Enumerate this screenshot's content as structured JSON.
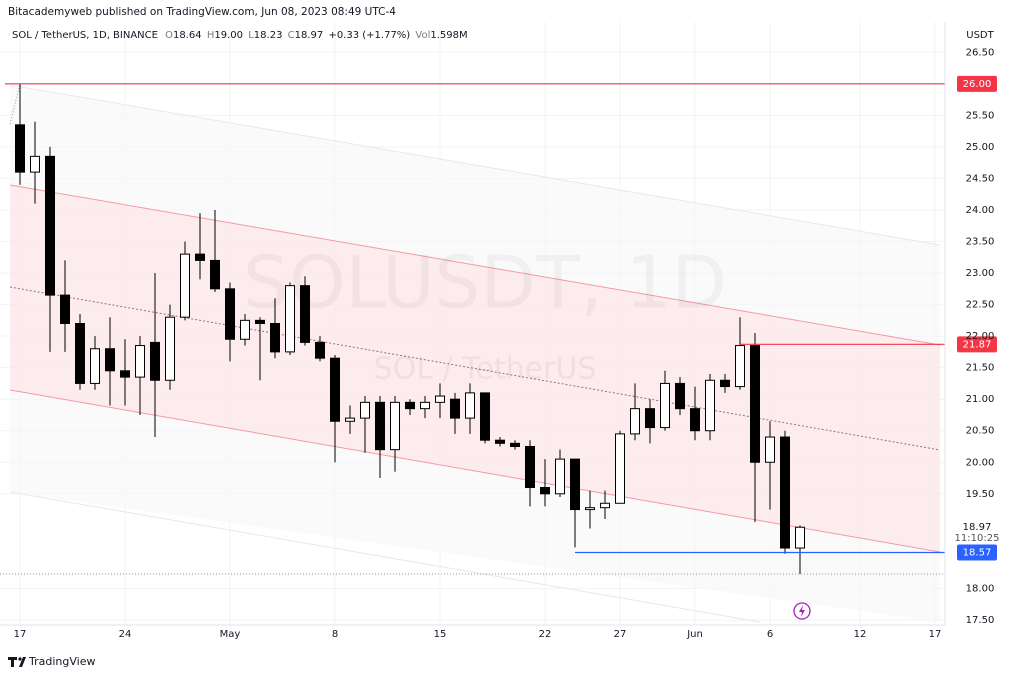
{
  "header": {
    "published": "Bitacademyweb published on TradingView.com, Jun 08, 2023 08:49 UTC-4",
    "symbol": "SOL / TetherUS, 1D, BINANCE",
    "ohlc": [
      {
        "label": "O",
        "text": "18.64"
      },
      {
        "label": "H",
        "text": "19.00"
      },
      {
        "label": "L",
        "text": "18.23"
      },
      {
        "label": "C",
        "text": "18.97"
      }
    ],
    "change": "+0.33 (+1.77%)",
    "volume": {
      "label": "Vol",
      "text": "1.598M"
    }
  },
  "footer": {
    "brand": "TradingView"
  },
  "chart_data": {
    "type": "candlestick",
    "watermark": "SOLUSDT, 1D",
    "watermark_sub": "SOL / TetherUS",
    "currency": "USDT",
    "x": [
      "2023-04-17",
      "2023-04-18",
      "2023-04-19",
      "2023-04-20",
      "2023-04-21",
      "2023-04-22",
      "2023-04-23",
      "2023-04-24",
      "2023-04-25",
      "2023-04-26",
      "2023-04-27",
      "2023-04-28",
      "2023-04-29",
      "2023-04-30",
      "2023-05-01",
      "2023-05-02",
      "2023-05-03",
      "2023-05-04",
      "2023-05-05",
      "2023-05-06",
      "2023-05-07",
      "2023-05-08",
      "2023-05-09",
      "2023-05-10",
      "2023-05-11",
      "2023-05-12",
      "2023-05-13",
      "2023-05-14",
      "2023-05-15",
      "2023-05-16",
      "2023-05-17",
      "2023-05-18",
      "2023-05-19",
      "2023-05-20",
      "2023-05-21",
      "2023-05-22",
      "2023-05-23",
      "2023-05-24",
      "2023-05-25",
      "2023-05-26",
      "2023-05-27",
      "2023-05-28",
      "2023-05-29",
      "2023-05-30",
      "2023-05-31",
      "2023-06-01",
      "2023-06-02",
      "2023-06-03",
      "2023-06-04",
      "2023-06-05",
      "2023-06-06",
      "2023-06-07",
      "2023-06-08"
    ],
    "open": [
      25.35,
      24.6,
      24.85,
      22.65,
      22.2,
      21.25,
      21.8,
      21.45,
      21.35,
      21.9,
      21.3,
      22.3,
      23.3,
      23.2,
      22.75,
      21.95,
      22.25,
      22.2,
      21.75,
      22.8,
      21.9,
      21.65,
      20.65,
      20.7,
      20.95,
      20.2,
      20.95,
      20.85,
      20.95,
      21.0,
      20.7,
      21.1,
      20.35,
      20.3,
      20.25,
      19.6,
      19.5,
      20.05,
      19.25,
      19.28,
      19.35,
      20.45,
      20.85,
      20.55,
      21.25,
      20.85,
      20.5,
      21.3,
      21.2,
      21.85,
      20.0,
      20.4,
      18.64
    ],
    "high": [
      26.0,
      25.4,
      25.0,
      23.2,
      22.35,
      22.0,
      22.3,
      21.95,
      22.0,
      23.0,
      22.5,
      23.5,
      23.95,
      24.0,
      22.85,
      22.35,
      22.3,
      22.6,
      22.85,
      22.95,
      22.0,
      21.7,
      20.9,
      21.05,
      21.05,
      21.05,
      21.0,
      21.05,
      21.25,
      21.1,
      21.25,
      21.1,
      20.4,
      20.35,
      20.35,
      20.05,
      20.2,
      20.05,
      19.55,
      19.55,
      20.5,
      21.25,
      21.0,
      21.45,
      21.35,
      21.2,
      21.4,
      21.4,
      22.3,
      22.05,
      20.65,
      20.5,
      19.0
    ],
    "low": [
      24.4,
      24.1,
      21.75,
      21.75,
      21.15,
      21.15,
      20.9,
      20.9,
      20.75,
      20.4,
      21.15,
      22.25,
      22.9,
      22.7,
      21.6,
      21.85,
      21.3,
      21.65,
      21.7,
      21.85,
      21.6,
      20.0,
      20.45,
      20.15,
      19.75,
      19.85,
      20.75,
      20.7,
      20.7,
      20.45,
      20.45,
      20.3,
      20.25,
      20.2,
      19.3,
      19.3,
      19.45,
      18.65,
      18.95,
      19.1,
      19.35,
      20.35,
      20.3,
      20.5,
      20.75,
      20.35,
      20.35,
      21.1,
      21.15,
      19.05,
      19.25,
      18.55,
      18.23
    ],
    "close": [
      24.6,
      24.85,
      22.65,
      22.2,
      21.25,
      21.8,
      21.45,
      21.35,
      21.85,
      21.3,
      22.3,
      23.3,
      23.2,
      22.75,
      21.95,
      22.25,
      22.2,
      21.75,
      22.8,
      21.9,
      21.65,
      20.65,
      20.7,
      20.95,
      20.2,
      20.95,
      20.85,
      20.95,
      21.05,
      20.7,
      21.1,
      20.35,
      20.3,
      20.25,
      19.6,
      19.5,
      20.05,
      19.25,
      19.28,
      19.35,
      20.45,
      20.85,
      20.55,
      21.25,
      20.85,
      20.5,
      21.3,
      21.2,
      21.85,
      20.0,
      20.4,
      18.64,
      18.97
    ],
    "up_color": "#ffffff",
    "down_color": "#000000",
    "border_color": "#000000",
    "xlim": [
      "2023-04-15T16:00:00Z",
      "2023-06-17T16:00:00Z"
    ],
    "xticks": [
      {
        "value": "2023-04-17",
        "label": "17"
      },
      {
        "value": "2023-04-24",
        "label": "24"
      },
      {
        "value": "2023-05-01",
        "label": "May"
      },
      {
        "value": "2023-05-08",
        "label": "8"
      },
      {
        "value": "2023-05-15",
        "label": "15"
      },
      {
        "value": "2023-05-22",
        "label": "22"
      },
      {
        "value": "2023-05-27",
        "label": "27"
      },
      {
        "value": "2023-06-01",
        "label": "Jun"
      },
      {
        "value": "2023-06-06",
        "label": "6"
      },
      {
        "value": "2023-06-12",
        "label": "12"
      },
      {
        "value": "2023-06-17",
        "label": "17"
      }
    ],
    "ylim": [
      17.42,
      26.98
    ],
    "yticks": [
      {
        "value": 17.5,
        "label": "17.50"
      },
      {
        "value": 18,
        "label": "18.00"
      },
      {
        "value": 19.5,
        "label": "19.50"
      },
      {
        "value": 20,
        "label": "20.00"
      },
      {
        "value": 20.5,
        "label": "20.50"
      },
      {
        "value": 21,
        "label": "21.00"
      },
      {
        "value": 21.5,
        "label": "21.50"
      },
      {
        "value": 22,
        "label": "22.00"
      },
      {
        "value": 22.5,
        "label": "22.50"
      },
      {
        "value": 23,
        "label": "23.00"
      },
      {
        "value": 23.5,
        "label": "23.50"
      },
      {
        "value": 24,
        "label": "24.00"
      },
      {
        "value": 24.5,
        "label": "24.50"
      },
      {
        "value": 25,
        "label": "25.00"
      },
      {
        "value": 25.5,
        "label": "25.50"
      },
      {
        "value": 26.5,
        "label": "26.50"
      }
    ],
    "grid": true,
    "price_lines": [
      {
        "value": 26,
        "label": "26.00",
        "from": "2023-04-16",
        "color": "#f23645"
      },
      {
        "value": 21.87,
        "label": "21.87",
        "from": "2023-06-04",
        "color": "#f23645"
      },
      {
        "value": 18.57,
        "label": "18.57",
        "from": "2023-05-24",
        "color": "#2962ff"
      }
    ],
    "last_price": {
      "value": 18.97,
      "label": "18.97",
      "countdown": "11:10:25"
    }
  }
}
